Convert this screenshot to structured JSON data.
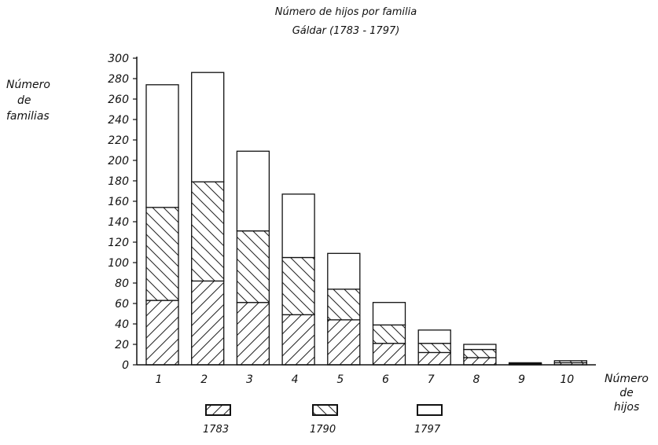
{
  "title": "Número de hijos por familia",
  "subtitle": "Gáldar (1783 - 1797)",
  "ylabel": [
    "Número",
    "de",
    "familias"
  ],
  "xlabel": [
    "Número",
    "de",
    "hijos"
  ],
  "chart_data": {
    "type": "bar",
    "stacked": true,
    "title": "Número de hijos por familia",
    "subtitle": "Gáldar (1783 - 1797)",
    "xlabel": "Número de hijos",
    "ylabel": "Número de familias",
    "ylim": [
      0,
      300
    ],
    "yticks": [
      0,
      20,
      40,
      60,
      80,
      100,
      120,
      140,
      160,
      180,
      200,
      220,
      240,
      260,
      280,
      300
    ],
    "categories": [
      "1",
      "2",
      "3",
      "4",
      "5",
      "6",
      "7",
      "8",
      "9",
      "10"
    ],
    "series": [
      {
        "name": "1783",
        "pattern": "hatch-forward",
        "values": [
          63,
          82,
          61,
          49,
          44,
          21,
          12,
          7,
          1,
          2
        ]
      },
      {
        "name": "1790",
        "pattern": "hatch-back",
        "values": [
          91,
          97,
          70,
          56,
          30,
          18,
          9,
          8,
          1,
          2
        ]
      },
      {
        "name": "1797",
        "pattern": "blank",
        "values": [
          120,
          107,
          78,
          62,
          35,
          22,
          13,
          5,
          0,
          0
        ]
      }
    ],
    "legend": [
      "1783",
      "1790",
      "1797"
    ],
    "legend_position": "bottom",
    "grid": false
  }
}
